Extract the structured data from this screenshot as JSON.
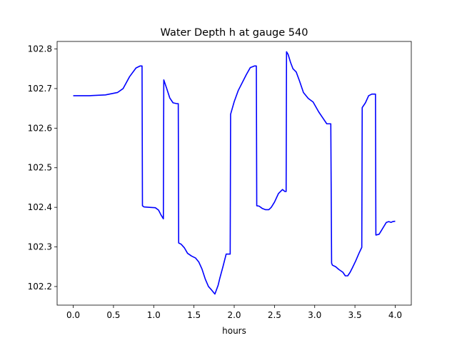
{
  "chart_data": {
    "type": "line",
    "title": "Water Depth h at gauge 540",
    "xlabel": "hours",
    "ylabel": "",
    "xlim": [
      -0.2,
      4.2
    ],
    "ylim": [
      102.153,
      102.819
    ],
    "xticks": [
      0.0,
      0.5,
      1.0,
      1.5,
      2.0,
      2.5,
      3.0,
      3.5,
      4.0
    ],
    "xtick_labels": [
      "0.0",
      "0.5",
      "1.0",
      "1.5",
      "2.0",
      "2.5",
      "3.0",
      "3.5",
      "4.0"
    ],
    "yticks": [
      102.2,
      102.3,
      102.4,
      102.5,
      102.6,
      102.7,
      102.8
    ],
    "ytick_labels": [
      "102.2",
      "102.3",
      "102.4",
      "102.5",
      "102.6",
      "102.7",
      "102.8"
    ],
    "grid": false,
    "legend": "none",
    "series": [
      {
        "color": "#0000ff",
        "x": [
          0.0,
          0.2,
          0.4,
          0.55,
          0.62,
          0.7,
          0.78,
          0.83,
          0.855,
          0.86,
          0.88,
          0.95,
          1.02,
          1.06,
          1.09,
          1.12,
          1.125,
          1.16,
          1.2,
          1.24,
          1.285,
          1.305,
          1.31,
          1.34,
          1.38,
          1.42,
          1.47,
          1.52,
          1.56,
          1.6,
          1.64,
          1.68,
          1.72,
          1.76,
          1.8,
          1.82,
          1.86,
          1.9,
          1.95,
          1.955,
          2.0,
          2.05,
          2.1,
          2.15,
          2.2,
          2.25,
          2.275,
          2.28,
          2.31,
          2.35,
          2.39,
          2.43,
          2.46,
          2.5,
          2.55,
          2.6,
          2.63,
          2.645,
          2.65,
          2.67,
          2.7,
          2.73,
          2.77,
          2.81,
          2.86,
          2.92,
          2.98,
          3.05,
          3.1,
          3.15,
          3.2,
          3.21,
          3.22,
          3.26,
          3.3,
          3.35,
          3.38,
          3.41,
          3.44,
          3.47,
          3.51,
          3.55,
          3.585,
          3.59,
          3.63,
          3.67,
          3.71,
          3.755,
          3.76,
          3.8,
          3.83,
          3.86,
          3.89,
          3.92,
          3.95,
          3.97,
          4.0
        ],
        "y": [
          102.682,
          102.682,
          102.684,
          102.69,
          102.7,
          102.73,
          102.752,
          102.757,
          102.757,
          102.404,
          102.401,
          102.4,
          102.399,
          102.393,
          102.381,
          102.371,
          102.722,
          102.701,
          102.676,
          102.664,
          102.662,
          102.662,
          102.31,
          102.307,
          102.298,
          102.284,
          102.277,
          102.272,
          102.262,
          102.244,
          102.219,
          102.2,
          102.191,
          102.181,
          102.203,
          102.22,
          102.25,
          102.282,
          102.282,
          102.635,
          102.667,
          102.695,
          102.715,
          102.735,
          102.753,
          102.757,
          102.757,
          102.404,
          102.403,
          102.397,
          102.394,
          102.394,
          102.4,
          102.413,
          102.435,
          102.445,
          102.44,
          102.44,
          102.793,
          102.786,
          102.766,
          102.75,
          102.742,
          102.72,
          102.69,
          102.675,
          102.666,
          102.641,
          102.626,
          102.611,
          102.611,
          102.259,
          102.254,
          102.25,
          102.243,
          102.236,
          102.227,
          102.227,
          102.236,
          102.248,
          102.265,
          102.284,
          102.299,
          102.652,
          102.664,
          102.682,
          102.686,
          102.686,
          102.33,
          102.332,
          102.342,
          102.352,
          102.362,
          102.364,
          102.362,
          102.364,
          102.365
        ]
      }
    ]
  }
}
